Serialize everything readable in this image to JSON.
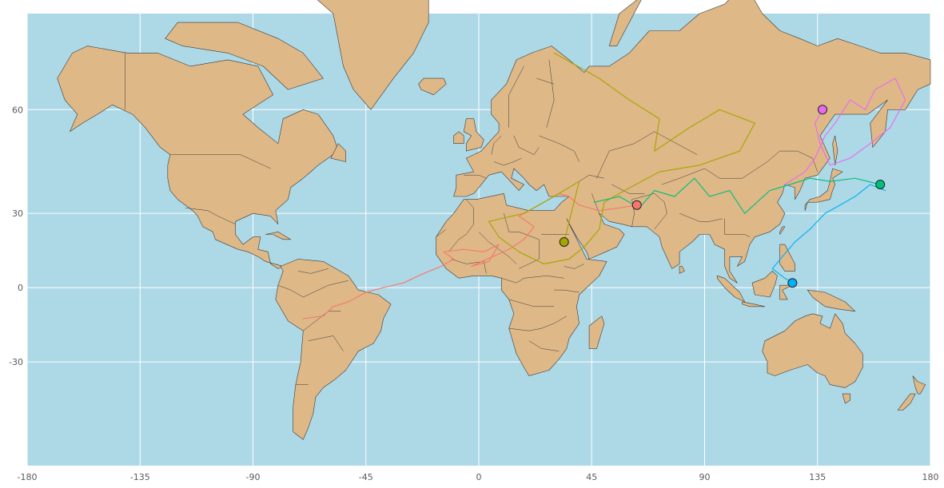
{
  "chart_data": {
    "type": "map-scatter-paths",
    "projection": "mercator",
    "xlim": [
      -180,
      180
    ],
    "ylim": [
      -60,
      75
    ],
    "x_ticks": [
      -180,
      -135,
      -90,
      -45,
      0,
      45,
      90,
      135,
      180
    ],
    "y_ticks": [
      -30,
      0,
      30,
      60
    ],
    "x_tick_labels": [
      "-180",
      "-135",
      "-90",
      "-45",
      "0",
      "45",
      "90",
      "135",
      "180"
    ],
    "y_tick_labels": [
      "-30",
      "0",
      "30",
      "60"
    ],
    "grid": true,
    "ocean_color": "#add8e6",
    "land_color": "#deb887",
    "series": [
      {
        "color": "#f8766d",
        "end": [
          63,
          33
        ],
        "path": [
          [
            -70,
            -13
          ],
          [
            -62,
            -12
          ],
          [
            -58,
            -8
          ],
          [
            -52,
            -6
          ],
          [
            -45,
            -2
          ],
          [
            -38,
            0
          ],
          [
            -30,
            2
          ],
          [
            -22,
            6
          ],
          [
            -15,
            9
          ],
          [
            -10,
            12
          ],
          [
            -14,
            15
          ],
          [
            -6,
            16
          ],
          [
            2,
            15
          ],
          [
            8,
            18
          ],
          [
            4,
            11
          ],
          [
            -3,
            9
          ],
          [
            12,
            16
          ],
          [
            18,
            20
          ],
          [
            22,
            25
          ],
          [
            16,
            29
          ],
          [
            24,
            33
          ],
          [
            32,
            37
          ],
          [
            36,
            36
          ],
          [
            40,
            33
          ],
          [
            48,
            31
          ],
          [
            56,
            32
          ],
          [
            63,
            33
          ]
        ]
      },
      {
        "color": "#a3a500",
        "end": [
          34,
          19
        ],
        "path": [
          [
            30,
            70
          ],
          [
            48,
            66
          ],
          [
            60,
            62
          ],
          [
            72,
            58
          ],
          [
            70,
            50
          ],
          [
            84,
            56
          ],
          [
            96,
            60
          ],
          [
            110,
            57
          ],
          [
            104,
            50
          ],
          [
            88,
            46
          ],
          [
            72,
            44
          ],
          [
            58,
            38
          ],
          [
            50,
            34
          ],
          [
            48,
            24
          ],
          [
            42,
            17
          ],
          [
            36,
            12
          ],
          [
            26,
            10
          ],
          [
            16,
            15
          ],
          [
            8,
            21
          ],
          [
            4,
            27
          ],
          [
            18,
            30
          ],
          [
            30,
            36
          ],
          [
            40,
            41
          ],
          [
            34,
            19
          ]
        ]
      },
      {
        "color": "#00bf7d",
        "end": [
          160,
          40
        ],
        "path": [
          [
            46,
            34
          ],
          [
            56,
            36
          ],
          [
            64,
            32
          ],
          [
            70,
            38
          ],
          [
            78,
            36
          ],
          [
            86,
            42
          ],
          [
            92,
            36
          ],
          [
            100,
            38
          ],
          [
            106,
            30
          ],
          [
            116,
            38
          ],
          [
            124,
            40
          ],
          [
            132,
            42
          ],
          [
            140,
            41
          ],
          [
            150,
            42
          ],
          [
            160,
            40
          ]
        ]
      },
      {
        "color": "#00b0f6",
        "end": [
          125,
          2
        ],
        "path": [
          [
            162,
            38
          ],
          [
            156,
            40
          ],
          [
            150,
            36
          ],
          [
            144,
            33
          ],
          [
            138,
            30
          ],
          [
            132,
            24
          ],
          [
            126,
            19
          ],
          [
            121,
            13
          ],
          [
            117,
            8
          ],
          [
            122,
            4
          ],
          [
            125,
            2
          ]
        ]
      },
      {
        "color": "#e76bf3",
        "end": [
          137,
          60
        ],
        "path": [
          [
            122,
            40
          ],
          [
            130,
            44
          ],
          [
            134,
            48
          ],
          [
            138,
            54
          ],
          [
            142,
            57
          ],
          [
            148,
            62
          ],
          [
            154,
            60
          ],
          [
            158,
            64
          ],
          [
            166,
            66
          ],
          [
            170,
            62
          ],
          [
            164,
            56
          ],
          [
            156,
            52
          ],
          [
            148,
            48
          ],
          [
            140,
            46
          ],
          [
            136,
            52
          ],
          [
            134,
            57
          ],
          [
            137,
            60
          ]
        ]
      }
    ]
  }
}
